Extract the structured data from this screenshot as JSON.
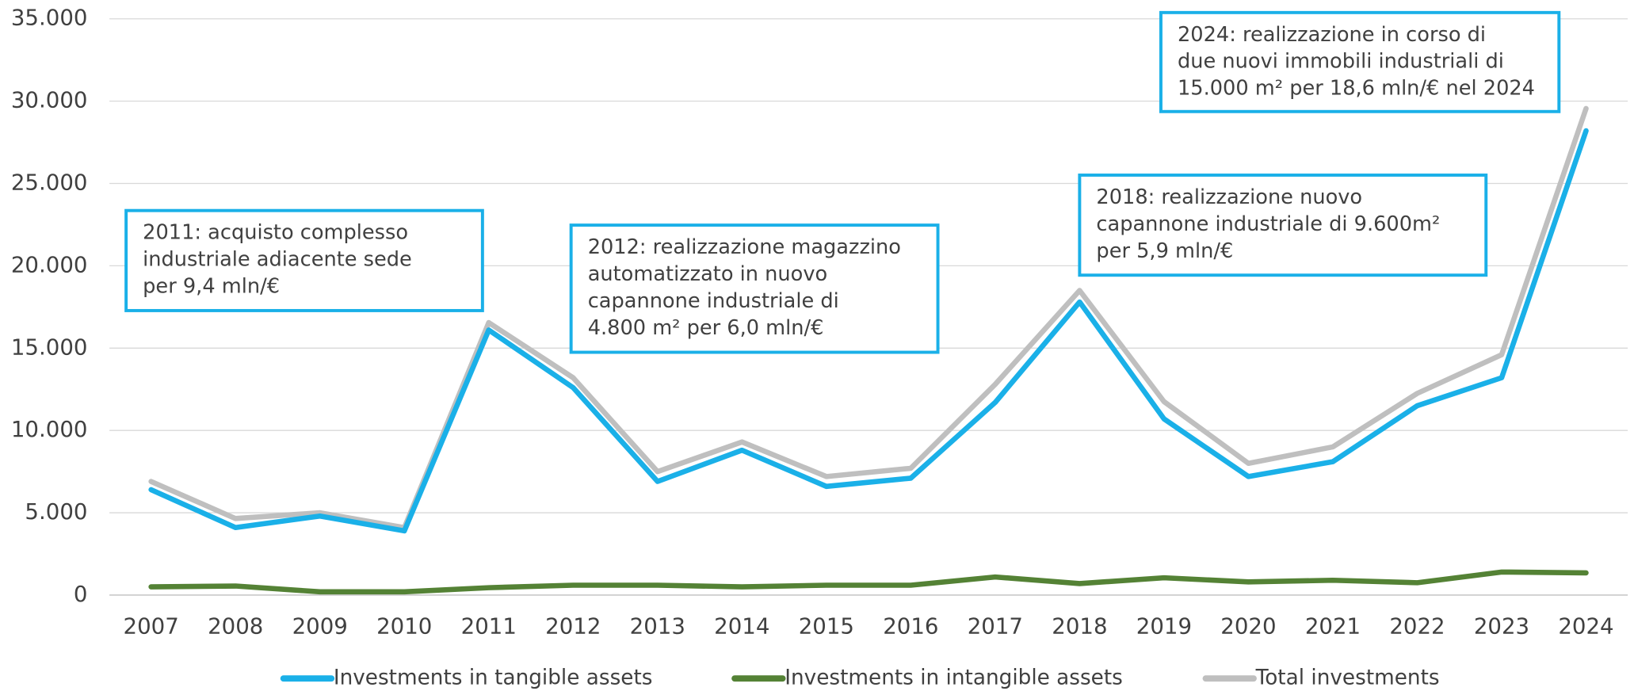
{
  "chart_data": {
    "type": "line",
    "categories": [
      "2007",
      "2008",
      "2009",
      "2010",
      "2011",
      "2012",
      "2013",
      "2014",
      "2015",
      "2016",
      "2017",
      "2018",
      "2019",
      "2020",
      "2021",
      "2022",
      "2023",
      "2024"
    ],
    "series": [
      {
        "name": "Investments in tangible assets",
        "color": "#1ab0e8",
        "values": [
          6400,
          4100,
          4800,
          3900,
          16100,
          12600,
          6900,
          8800,
          6600,
          7100,
          11700,
          17800,
          10700,
          7200,
          8100,
          11500,
          13200,
          28200
        ]
      },
      {
        "name": "Investments in intangible assets",
        "color": "#548235",
        "values": [
          500,
          550,
          200,
          200,
          450,
          600,
          600,
          500,
          600,
          600,
          1100,
          700,
          1050,
          800,
          900,
          750,
          1400,
          1350
        ]
      },
      {
        "name": "Total investments",
        "color": "#bfbfbf",
        "values": [
          6900,
          4650,
          5000,
          4100,
          16550,
          13200,
          7500,
          9300,
          7200,
          7700,
          12800,
          18500,
          11750,
          8000,
          9000,
          12250,
          14600,
          29550
        ]
      }
    ],
    "ylim": [
      0,
      35000
    ],
    "yticks": [
      0,
      {
        "value": 5000,
        "label": "5.000"
      },
      {
        "value": 10000,
        "label": "10.000"
      },
      {
        "value": 15000,
        "label": "15.000"
      },
      {
        "value": 20000,
        "label": "20.000"
      },
      {
        "value": 25000,
        "label": "25.000"
      },
      {
        "value": 30000,
        "label": "30.000"
      },
      {
        "value": 35000,
        "label": "35.000"
      }
    ],
    "grid": true,
    "legend": "bottom",
    "annotations": [
      {
        "lines": [
          "2011: acquisto complesso",
          "industriale adiacente sede",
          "per 9,4 mln/€"
        ]
      },
      {
        "lines": [
          "2012: realizzazione magazzino",
          "automatizzato in nuovo",
          "capannone industriale di",
          "4.800 m² per 6,0 mln/€"
        ]
      },
      {
        "lines": [
          "2018: realizzazione nuovo",
          "capannone industriale di 9.600m²",
          "per 5,9 mln/€"
        ]
      },
      {
        "lines": [
          "2024: realizzazione in corso di",
          "due nuovi immobili industriali di",
          "15.000 m² per 18,6 mln/€ nel 2024"
        ]
      }
    ]
  }
}
